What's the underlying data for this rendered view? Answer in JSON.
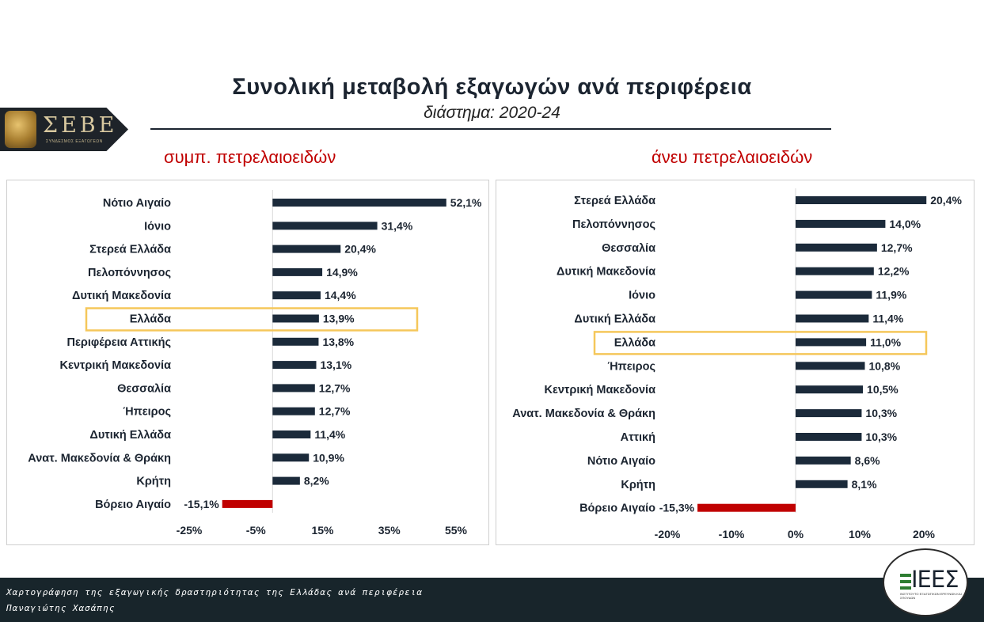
{
  "title": "Συνολική μεταβολή εξαγωγών ανά περιφέρεια",
  "subtitle": "διάστημα: 2020-24",
  "logo": {
    "text": "ΣΕΒΕ",
    "subtext": "ΣΥΝΔΕΣΜΟΣ ΕΞΑΓΩΓΕΩΝ"
  },
  "footer": {
    "line1": "Χαρτογράφηση της εξαγωγικής δραστηριότητας της Ελλάδας ανά περιφέρεια",
    "line2": "Παναγιώτης Χασάπης"
  },
  "footer_logo": {
    "text": "ΙΕΕΣ",
    "subtext": "ΙΝΣΤΙΤΟΥΤΟ ΕΞΑΓΩΓΙΚΩΝ ΕΡΕΥΝΩΝ ΚΑΙ ΣΠΟΥΔΩΝ"
  },
  "colors": {
    "positive": "#1b2a3a",
    "negative": "#c00000",
    "highlight": "#f5c75a",
    "panel_title": "#c00000"
  },
  "chart_data": [
    {
      "type": "bar",
      "orientation": "horizontal",
      "title": "συμπ. πετρελαιοειδών",
      "highlight": "Ελλάδα",
      "categories": [
        "Νότιο Αιγαίο",
        "Ιόνιο",
        "Στερεά Ελλάδα",
        "Πελοπόννησος",
        "Δυτική Μακεδονία",
        "Ελλάδα",
        "Περιφέρεια Αττικής",
        "Κεντρική Μακεδονία",
        "Θεσσαλία",
        "Ήπειρος",
        "Δυτική Ελλάδα",
        "Ανατ. Μακεδονία & Θράκη",
        "Κρήτη",
        "Βόρειο Αιγαίο"
      ],
      "values": [
        52.1,
        31.4,
        20.4,
        14.9,
        14.4,
        13.9,
        13.8,
        13.1,
        12.7,
        12.7,
        11.4,
        10.9,
        8.2,
        -15.1
      ],
      "labels": [
        "52,1%",
        "31,4%",
        "20,4%",
        "14,9%",
        "14,4%",
        "13,9%",
        "13,8%",
        "13,1%",
        "12,7%",
        "12,7%",
        "11,4%",
        "10,9%",
        "8,2%",
        "-15,1%"
      ],
      "xticks": [
        -25,
        -5,
        15,
        35,
        55
      ],
      "xtick_labels": [
        "-25%",
        "-5%",
        "15%",
        "35%",
        "55%"
      ],
      "xlim": [
        -25,
        55
      ]
    },
    {
      "type": "bar",
      "orientation": "horizontal",
      "title": "άνευ πετρελαιοειδών",
      "highlight": "Ελλάδα",
      "categories": [
        "Στερεά Ελλάδα",
        "Πελοπόννησος",
        "Θεσσαλία",
        "Δυτική Μακεδονία",
        "Ιόνιο",
        "Δυτική Ελλάδα",
        "Ελλάδα",
        "Ήπειρος",
        "Κεντρική Μακεδονία",
        "Ανατ. Μακεδονία & Θράκη",
        "Αττική",
        "Νότιο Αιγαίο",
        "Κρήτη",
        "Βόρειο Αιγαίο"
      ],
      "values": [
        20.4,
        14.0,
        12.7,
        12.2,
        11.9,
        11.4,
        11.0,
        10.8,
        10.5,
        10.3,
        10.3,
        8.6,
        8.1,
        -15.3
      ],
      "labels": [
        "20,4%",
        "14,0%",
        "12,7%",
        "12,2%",
        "11,9%",
        "11,4%",
        "11,0%",
        "10,8%",
        "10,5%",
        "10,3%",
        "10,3%",
        "8,6%",
        "8,1%",
        "-15,3%"
      ],
      "xticks": [
        -20,
        -10,
        0,
        10,
        20
      ],
      "xtick_labels": [
        "-20%",
        "-10%",
        "0%",
        "10%",
        "20%"
      ],
      "xlim": [
        -20,
        20
      ]
    }
  ]
}
